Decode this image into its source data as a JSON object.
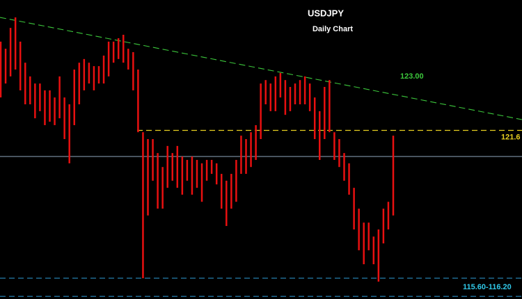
{
  "chart_data": {
    "type": "ohlc",
    "title": "USDJPY",
    "subtitle": "Daily Chart",
    "ylim": [
      115.2,
      126.55
    ],
    "color": "#e81010",
    "series": [
      {
        "name": "High",
        "values": [
          124.97,
          124.7,
          125.49,
          125.89,
          124.97,
          124.17,
          123.65,
          123.38,
          123.38,
          123.12,
          123.12,
          122.85,
          123.65,
          122.85,
          122.59,
          123.91,
          124.17,
          124.31,
          124.17,
          124.04,
          124.04,
          124.44,
          124.97,
          124.97,
          125.1,
          125.23,
          124.7,
          124.57,
          123.91,
          121.53,
          121.27,
          121.27,
          120.74,
          120.21,
          121.01,
          120.74,
          121.01,
          120.61,
          120.48,
          120.61,
          120.48,
          120.35,
          120.48,
          120.48,
          120.35,
          119.95,
          119.69,
          119.95,
          120.48,
          121.4,
          121.27,
          121.53,
          121.8,
          123.38,
          123.51,
          123.38,
          123.65,
          123.78,
          123.51,
          123.25,
          123.38,
          123.51,
          123.65,
          123.38,
          122.85,
          122.33,
          123.25,
          123.51,
          121.53,
          121.27,
          120.74,
          120.35,
          119.42,
          118.63,
          118.1,
          118.1,
          117.57,
          117.84,
          118.63,
          118.89,
          121.4
        ]
      },
      {
        "name": "Low",
        "values": [
          122.85,
          123.38,
          123.65,
          123.91,
          123.12,
          122.59,
          122.59,
          122.06,
          122.33,
          121.8,
          121.93,
          121.8,
          122.06,
          121.27,
          120.35,
          121.8,
          122.59,
          123.12,
          123.38,
          123.12,
          123.38,
          123.38,
          123.65,
          124.17,
          124.31,
          124.17,
          123.91,
          123.12,
          121.53,
          115.99,
          118.37,
          119.69,
          118.63,
          118.63,
          119.42,
          119.69,
          119.42,
          119.16,
          119.69,
          119.16,
          119.42,
          118.89,
          119.69,
          119.95,
          119.55,
          118.63,
          117.97,
          118.63,
          118.89,
          119.95,
          119.95,
          120.21,
          120.48,
          121.27,
          122.59,
          122.33,
          122.33,
          122.85,
          122.19,
          122.33,
          122.59,
          122.59,
          122.59,
          122.33,
          121.27,
          120.48,
          121.27,
          121.53,
          120.48,
          120.21,
          119.69,
          119.16,
          117.84,
          117.05,
          116.52,
          117.05,
          116.52,
          115.86,
          117.31,
          117.84,
          118.37
        ]
      }
    ],
    "trendline": {
      "values": [
        125.89,
        122.01
      ],
      "color": "#3cc83c",
      "label": "123.00"
    },
    "levels": [
      {
        "value": 121.6,
        "color": "#e8d020",
        "style": "dashed",
        "label": "121.6"
      },
      {
        "value": 120.61,
        "color": "#7f93a8",
        "style": "solid"
      },
      {
        "value": 115.99,
        "color": "#2a8cc0",
        "style": "dashed"
      },
      {
        "value": 115.3,
        "color": "#2a8cc0",
        "style": "dashed"
      }
    ],
    "annotations": [
      {
        "text": "115.60-116.20",
        "color": "#30c8e8"
      }
    ]
  }
}
